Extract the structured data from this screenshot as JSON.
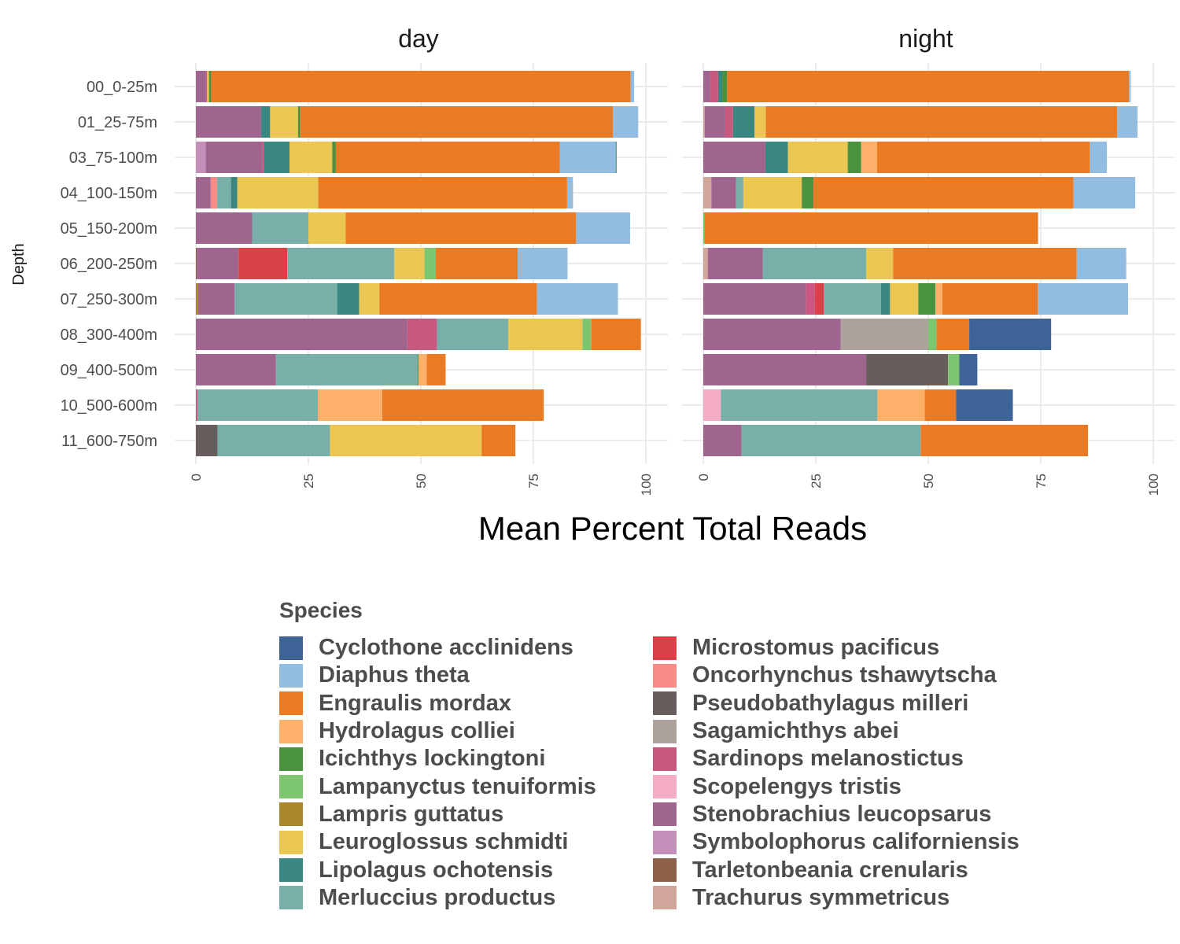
{
  "chart_data": {
    "type": "bar",
    "orientation": "horizontal",
    "stacked": true,
    "xlabel": "Mean Percent Total Reads",
    "ylabel": "Depth",
    "xlim": [
      0,
      100
    ],
    "x_ticks": [
      "0",
      "25",
      "50",
      "75",
      "100"
    ],
    "grid": true,
    "legend_position": "bottom",
    "legend_title": "Species",
    "categories": [
      "00_0-25m",
      "01_25-75m",
      "03_75-100m",
      "04_100-150m",
      "05_150-200m",
      "06_200-250m",
      "07_250-300m",
      "08_300-400m",
      "09_400-500m",
      "10_500-600m",
      "11_600-750m"
    ],
    "species": [
      {
        "name": "Cyclothone acclinidens",
        "color": "#3E6497"
      },
      {
        "name": "Diaphus theta",
        "color": "#92BDE0"
      },
      {
        "name": "Engraulis mordax",
        "color": "#EA7A23"
      },
      {
        "name": "Hydrolagus colliei",
        "color": "#FCB06A"
      },
      {
        "name": "Icichthys lockingtoni",
        "color": "#4A923E"
      },
      {
        "name": "Lampanyctus tenuiformis",
        "color": "#7DC66F"
      },
      {
        "name": "Lampris guttatus",
        "color": "#A8882A"
      },
      {
        "name": "Leuroglossus schmidti",
        "color": "#ECC653"
      },
      {
        "name": "Lipolagus ochotensis",
        "color": "#3A8680"
      },
      {
        "name": "Merluccius productus",
        "color": "#78AFA8"
      },
      {
        "name": "Microstomus pacificus",
        "color": "#DA4048"
      },
      {
        "name": "Oncorhynchus tshawytscha",
        "color": "#F78C86"
      },
      {
        "name": "Pseudobathylagus milleri",
        "color": "#665D5C"
      },
      {
        "name": "Sagamichthys abei",
        "color": "#ACA19B"
      },
      {
        "name": "Sardinops melanostictus",
        "color": "#C8587F"
      },
      {
        "name": "Scopelengys tristis",
        "color": "#F5ACC2"
      },
      {
        "name": "Stenobrachius leucopsarus",
        "color": "#A0658E"
      },
      {
        "name": "Symbolophorus californiensis",
        "color": "#C390BA"
      },
      {
        "name": "Tarletonbeania crenularis",
        "color": "#8D6049"
      },
      {
        "name": "Trachurus symmetricus",
        "color": "#D1A69A"
      }
    ],
    "panels": [
      {
        "title": "day",
        "rows": [
          [
            [
              "Stenobrachius leucopsarus",
              2.2
            ],
            [
              "Sardinops melanostictus",
              0.3
            ],
            [
              "Leuroglossus schmidti",
              0.4
            ],
            [
              "Icichthys lockingtoni",
              0.5
            ],
            [
              "Engraulis mordax",
              93.2
            ],
            [
              "Diaphus theta",
              0.8
            ]
          ],
          [
            [
              "Stenobrachius leucopsarus",
              14.5
            ],
            [
              "Lipolagus ochotensis",
              2.0
            ],
            [
              "Leuroglossus schmidti",
              6.2
            ],
            [
              "Icichthys lockingtoni",
              0.5
            ],
            [
              "Engraulis mordax",
              69.5
            ],
            [
              "Diaphus theta",
              5.6
            ]
          ],
          [
            [
              "Symbolophorus californiensis",
              2.2
            ],
            [
              "Stenobrachius leucopsarus",
              12.5
            ],
            [
              "Sardinops melanostictus",
              0.4
            ],
            [
              "Lipolagus ochotensis",
              5.7
            ],
            [
              "Leuroglossus schmidti",
              9.5
            ],
            [
              "Icichthys lockingtoni",
              0.8
            ],
            [
              "Engraulis mordax",
              49.8
            ],
            [
              "Diaphus theta",
              12.4
            ],
            [
              "Lipolagus ochotensis",
              0.2
            ]
          ],
          [
            [
              "Stenobrachius leucopsarus",
              3.3
            ],
            [
              "Oncorhynchus tshawytscha",
              1.4
            ],
            [
              "Merluccius productus",
              3.1
            ],
            [
              "Lipolagus ochotensis",
              1.4
            ],
            [
              "Leuroglossus schmidti",
              18.0
            ],
            [
              "Engraulis mordax",
              55.3
            ],
            [
              "Diaphus theta",
              1.3
            ]
          ],
          [
            [
              "Stenobrachius leucopsarus",
              12.5
            ],
            [
              "Merluccius productus",
              12.5
            ],
            [
              "Leuroglossus schmidti",
              8.3
            ],
            [
              "Engraulis mordax",
              51.2
            ],
            [
              "Diaphus theta",
              12.0
            ]
          ],
          [
            [
              "Tarletonbeania crenularis",
              0.2
            ],
            [
              "Stenobrachius leucopsarus",
              9.3
            ],
            [
              "Microstomus pacificus",
              10.8
            ],
            [
              "Merluccius productus",
              23.8
            ],
            [
              "Leuroglossus schmidti",
              6.7
            ],
            [
              "Lampanyctus tenuiformis",
              2.5
            ],
            [
              "Engraulis mordax",
              18.2
            ],
            [
              "Diaphus theta",
              11.1
            ]
          ],
          [
            [
              "Lampris guttatus",
              0.5
            ],
            [
              "Stenobrachius leucopsarus",
              8.1
            ],
            [
              "Merluccius productus",
              22.8
            ],
            [
              "Lipolagus ochotensis",
              4.9
            ],
            [
              "Leuroglossus schmidti",
              4.5
            ],
            [
              "Engraulis mordax",
              35.0
            ],
            [
              "Diaphus theta",
              18.0
            ]
          ],
          [
            [
              "Stenobrachius leucopsarus",
              47.0
            ],
            [
              "Sardinops melanostictus",
              6.6
            ],
            [
              "Merluccius productus",
              15.8
            ],
            [
              "Leuroglossus schmidti",
              16.5
            ],
            [
              "Lampanyctus tenuiformis",
              2.0
            ],
            [
              "Engraulis mordax",
              11.0
            ]
          ],
          [
            [
              "Stenobrachius leucopsarus",
              17.8
            ],
            [
              "Merluccius productus",
              31.5
            ],
            [
              "Icichthys lockingtoni",
              0.2
            ],
            [
              "Hydrolagus colliei",
              1.8
            ],
            [
              "Engraulis mordax",
              4.2
            ]
          ],
          [
            [
              "Sardinops melanostictus",
              0.4
            ],
            [
              "Merluccius productus",
              26.7
            ],
            [
              "Hydrolagus colliei",
              14.3
            ],
            [
              "Engraulis mordax",
              35.9
            ]
          ],
          [
            [
              "Pseudobathylagus milleri",
              4.8
            ],
            [
              "Merluccius productus",
              25.0
            ],
            [
              "Leuroglossus schmidti",
              33.7
            ],
            [
              "Engraulis mordax",
              7.5
            ]
          ]
        ]
      },
      {
        "title": "night",
        "rows": [
          [
            [
              "Stenobrachius leucopsarus",
              1.5
            ],
            [
              "Sardinops melanostictus",
              1.8
            ],
            [
              "Lipolagus ochotensis",
              0.9
            ],
            [
              "Icichthys lockingtoni",
              1.1
            ],
            [
              "Engraulis mordax",
              89.3
            ],
            [
              "Diaphus theta",
              0.4
            ]
          ],
          [
            [
              "Trachurus symmetricus",
              0.3
            ],
            [
              "Stenobrachius leucopsarus",
              4.5
            ],
            [
              "Sardinops melanostictus",
              1.8
            ],
            [
              "Lipolagus ochotensis",
              4.8
            ],
            [
              "Leuroglossus schmidti",
              2.5
            ],
            [
              "Engraulis mordax",
              78.1
            ],
            [
              "Diaphus theta",
              4.5
            ]
          ],
          [
            [
              "Stenobrachius leucopsarus",
              13.8
            ],
            [
              "Lipolagus ochotensis",
              5.0
            ],
            [
              "Leuroglossus schmidti",
              13.3
            ],
            [
              "Icichthys lockingtoni",
              3.0
            ],
            [
              "Hydrolagus colliei",
              3.5
            ],
            [
              "Engraulis mordax",
              47.3
            ],
            [
              "Diaphus theta",
              3.8
            ]
          ],
          [
            [
              "Trachurus symmetricus",
              1.8
            ],
            [
              "Stenobrachius leucopsarus",
              5.5
            ],
            [
              "Merluccius productus",
              1.6
            ],
            [
              "Leuroglossus schmidti",
              13.0
            ],
            [
              "Icichthys lockingtoni",
              2.6
            ],
            [
              "Engraulis mordax",
              57.8
            ],
            [
              "Diaphus theta",
              13.7
            ]
          ],
          [
            [
              "Lampanyctus tenuiformis",
              0.2
            ],
            [
              "Engraulis mordax",
              74.2
            ]
          ],
          [
            [
              "Trachurus symmetricus",
              1.0
            ],
            [
              "Stenobrachius leucopsarus",
              12.2
            ],
            [
              "Merluccius productus",
              23.0
            ],
            [
              "Leuroglossus schmidti",
              6.0
            ],
            [
              "Engraulis mordax",
              40.8
            ],
            [
              "Diaphus theta",
              11.0
            ]
          ],
          [
            [
              "Stenobrachius leucopsarus",
              22.8
            ],
            [
              "Sardinops melanostictus",
              2.0
            ],
            [
              "Microstomus pacificus",
              2.0
            ],
            [
              "Merluccius productus",
              12.7
            ],
            [
              "Lipolagus ochotensis",
              2.0
            ],
            [
              "Leuroglossus schmidti",
              6.3
            ],
            [
              "Icichthys lockingtoni",
              3.8
            ],
            [
              "Hydrolagus colliei",
              1.5
            ],
            [
              "Engraulis mordax",
              21.2
            ],
            [
              "Diaphus theta",
              20.1
            ]
          ],
          [
            [
              "Stenobrachius leucopsarus",
              30.5
            ],
            [
              "Sagamichthys abei",
              19.5
            ],
            [
              "Lampanyctus tenuiformis",
              1.8
            ],
            [
              "Engraulis mordax",
              7.3
            ],
            [
              "Cyclothone acclinidens",
              18.2
            ]
          ],
          [
            [
              "Stenobrachius leucopsarus",
              36.2
            ],
            [
              "Pseudobathylagus milleri",
              18.2
            ],
            [
              "Lampanyctus tenuiformis",
              2.5
            ],
            [
              "Cyclothone acclinidens",
              4.0
            ]
          ],
          [
            [
              "Scopelengys tristis",
              3.9
            ],
            [
              "Merluccius productus",
              34.8
            ],
            [
              "Hydrolagus colliei",
              10.5
            ],
            [
              "Engraulis mordax",
              7.0
            ],
            [
              "Cyclothone acclinidens",
              12.6
            ]
          ],
          [
            [
              "Stenobrachius leucopsarus",
              8.5
            ],
            [
              "Merluccius productus",
              39.8
            ],
            [
              "Engraulis mordax",
              37.2
            ]
          ]
        ]
      }
    ]
  }
}
